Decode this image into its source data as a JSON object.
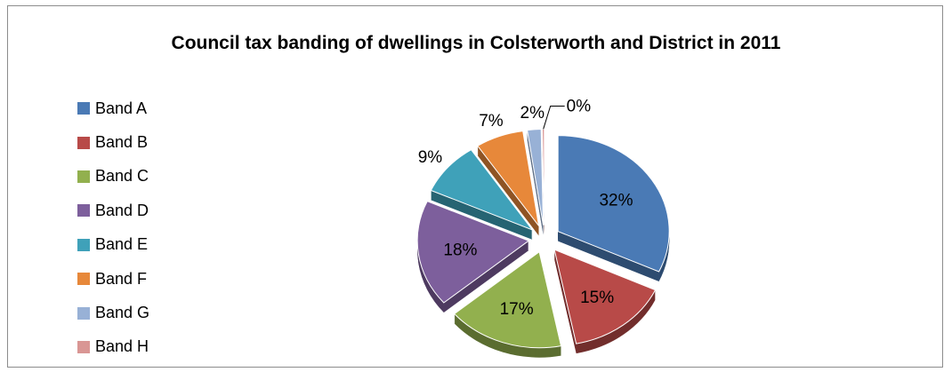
{
  "chart_data": {
    "type": "pie",
    "variant": "exploded-3d",
    "title": "Council tax banding of dwellings in Colsterworth and District in 2011",
    "legend_position": "left",
    "slices": [
      {
        "label": "Band A",
        "value": 32,
        "display": "32%",
        "color": "#4a7ab5"
      },
      {
        "label": "Band B",
        "value": 15,
        "display": "15%",
        "color": "#b84a48"
      },
      {
        "label": "Band C",
        "value": 17,
        "display": "17%",
        "color": "#92b04e"
      },
      {
        "label": "Band D",
        "value": 18,
        "display": "18%",
        "color": "#7d5f9c"
      },
      {
        "label": "Band E",
        "value": 9,
        "display": "9%",
        "color": "#3fa1b9"
      },
      {
        "label": "Band F",
        "value": 7,
        "display": "7%",
        "color": "#e7883a"
      },
      {
        "label": "Band G",
        "value": 2,
        "display": "2%",
        "color": "#98b1d6"
      },
      {
        "label": "Band H",
        "value": 0.3,
        "display": "0%",
        "color": "#d99694"
      }
    ]
  }
}
